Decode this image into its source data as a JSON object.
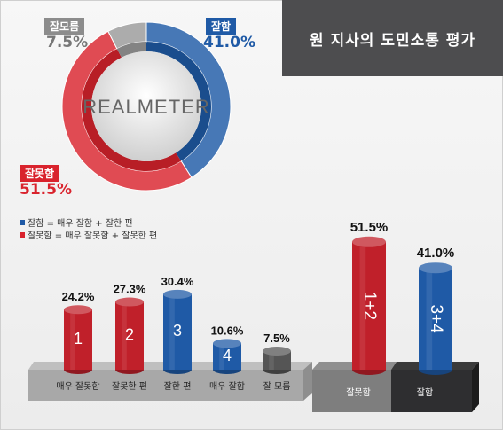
{
  "title": "원 지사의 도민소통 평가",
  "donut": {
    "logo": "REALMETER",
    "segments": [
      {
        "label": "잘함",
        "pct_label": "41.0%",
        "value": 41.0,
        "color": "#1f5aa6"
      },
      {
        "label": "잘못함",
        "pct_label": "51.5%",
        "value": 51.5,
        "color": "#d9232d"
      },
      {
        "label": "잘모름",
        "pct_label": "7.5%",
        "value": 7.5,
        "color": "#9a9a9a"
      }
    ]
  },
  "legend": [
    {
      "text": "잘함 = 매우 잘함 + 잘한 편",
      "color": "#1f5aa6"
    },
    {
      "text": "잘못함 = 매우 잘못함 + 잘못한 편",
      "color": "#d9232d"
    }
  ],
  "chart_data": [
    {
      "type": "bar",
      "categories": [
        "매우 잘못함",
        "잘못한 편",
        "잘한 편",
        "매우 잘함",
        "잘 모름"
      ],
      "values": [
        24.2,
        27.3,
        30.4,
        10.6,
        7.5
      ],
      "value_labels": [
        "24.2%",
        "27.3%",
        "30.4%",
        "10.6%",
        "7.5%"
      ],
      "bar_numbers": [
        "1",
        "2",
        "3",
        "4",
        ""
      ],
      "colors": [
        "#c0202a",
        "#c0202a",
        "#1f5aa6",
        "#1f5aa6",
        "#555555"
      ]
    },
    {
      "type": "bar",
      "categories": [
        "잘못함",
        "잘함"
      ],
      "values": [
        51.5,
        41.0
      ],
      "value_labels": [
        "51.5%",
        "41.0%"
      ],
      "bar_numbers": [
        "1+2",
        "3+4"
      ],
      "colors": [
        "#c0202a",
        "#1f5aa6"
      ]
    }
  ]
}
